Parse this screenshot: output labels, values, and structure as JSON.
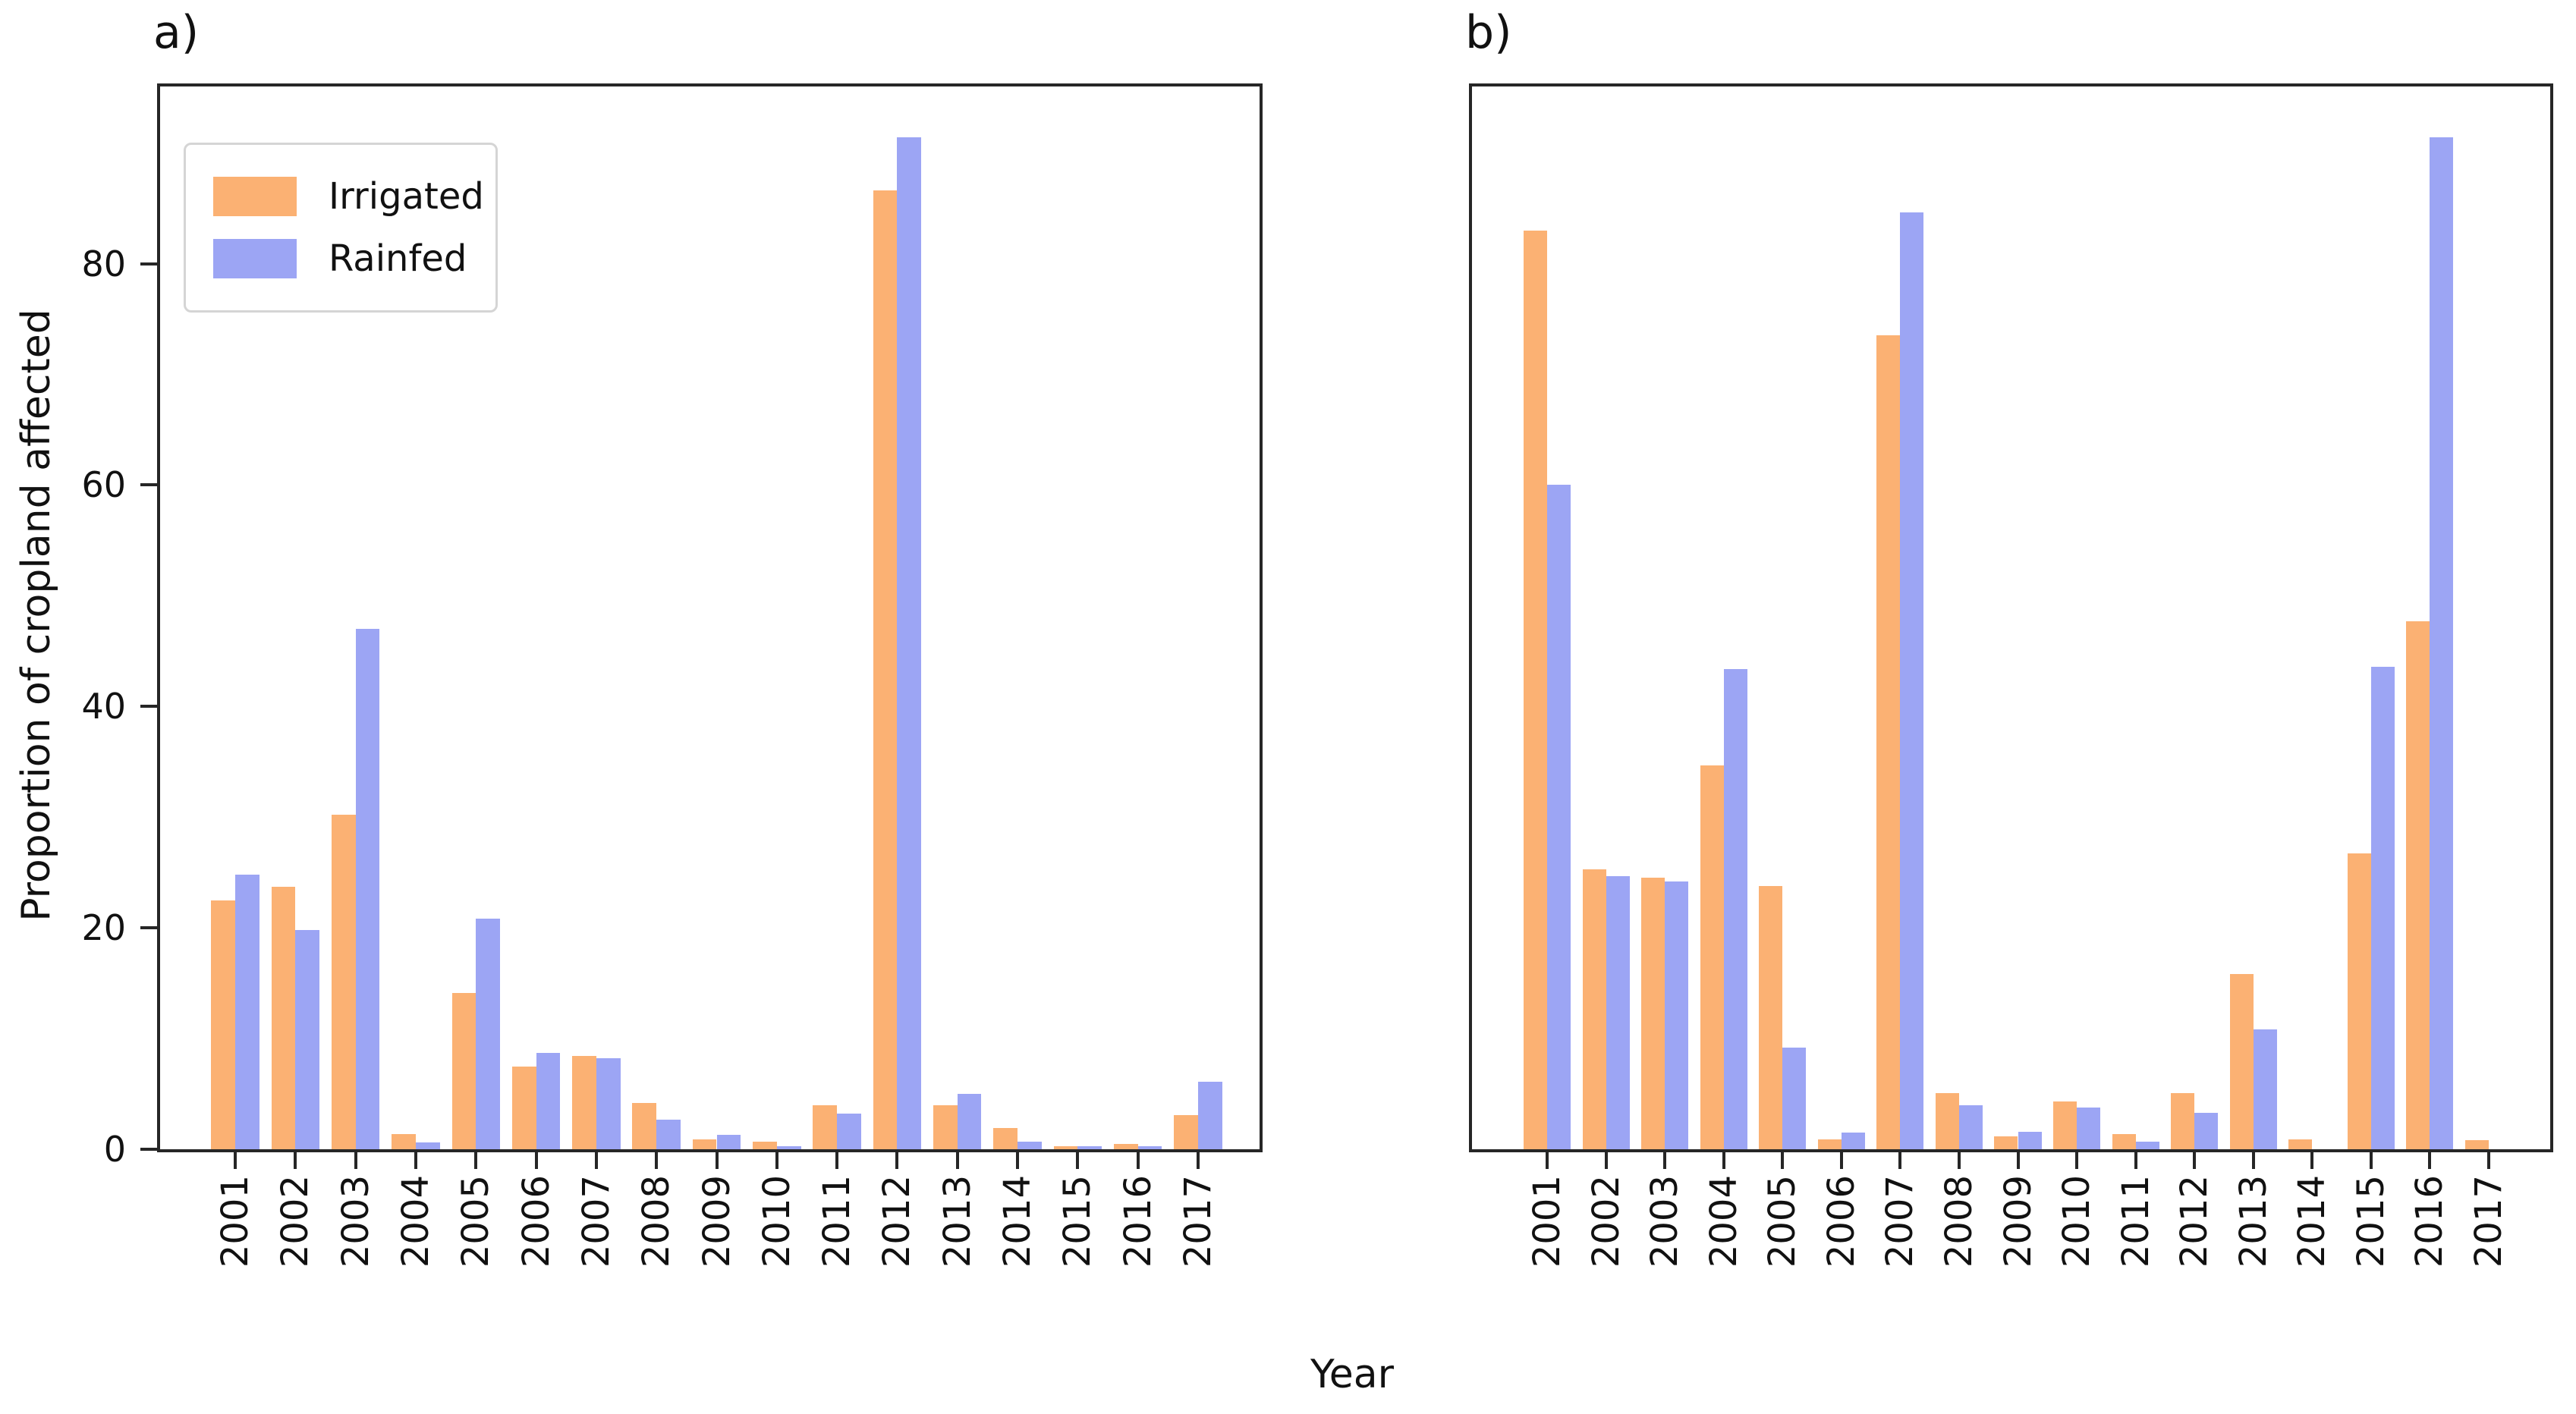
{
  "figure": {
    "xlabel": "Year",
    "ylabel": "Proportion of cropland affected",
    "background": "#ffffff",
    "spine_color": "#262626",
    "colors": {
      "irrigated": "#FBB173",
      "rainfed": "#9CA5F4"
    },
    "legend": {
      "position": "upper left",
      "items": [
        {
          "label": "Irrigated",
          "color": "#FBB173"
        },
        {
          "label": "Rainfed",
          "color": "#9CA5F4"
        }
      ]
    }
  },
  "chart_data": [
    {
      "type": "bar",
      "panel_label": "a)",
      "xlabel": "Year",
      "ylabel": "Proportion of cropland affected",
      "ylim": [
        0,
        96
      ],
      "yticks": [
        "0",
        "20",
        "40",
        "60",
        "80"
      ],
      "grid": false,
      "legend_position": "upper left",
      "categories": [
        "2001",
        "2002",
        "2003",
        "2004",
        "2005",
        "2006",
        "2007",
        "2008",
        "2009",
        "2010",
        "2011",
        "2012",
        "2013",
        "2014",
        "2015",
        "2016",
        "2017"
      ],
      "series": [
        {
          "name": "Irrigated",
          "values": [
            22.5,
            23.7,
            30.2,
            1.4,
            14.1,
            7.5,
            8.4,
            4.2,
            0.9,
            0.7,
            4.0,
            86.6,
            4.0,
            1.9,
            0.3,
            0.5,
            3.1
          ]
        },
        {
          "name": "Rainfed",
          "values": [
            24.8,
            19.8,
            47.0,
            0.6,
            20.8,
            8.7,
            8.2,
            2.7,
            1.3,
            0.3,
            3.2,
            91.4,
            5.0,
            0.7,
            0.3,
            0.3,
            6.1
          ]
        }
      ]
    },
    {
      "type": "bar",
      "panel_label": "b)",
      "xlabel": "Year",
      "ylabel": "",
      "ylim": [
        0,
        96
      ],
      "yticks": [],
      "grid": false,
      "legend_position": "none",
      "categories": [
        "2001",
        "2002",
        "2003",
        "2004",
        "2005",
        "2006",
        "2007",
        "2008",
        "2009",
        "2010",
        "2011",
        "2012",
        "2013",
        "2014",
        "2015",
        "2016",
        "2017"
      ],
      "series": [
        {
          "name": "Irrigated",
          "values": [
            83.0,
            25.3,
            24.5,
            34.7,
            23.8,
            0.9,
            73.5,
            5.1,
            1.2,
            4.3,
            1.4,
            5.1,
            15.8,
            0.9,
            26.7,
            47.7,
            0.8
          ]
        },
        {
          "name": "Rainfed",
          "values": [
            60.0,
            24.7,
            24.2,
            43.4,
            9.2,
            1.5,
            84.6,
            4.0,
            1.6,
            3.8,
            0.7,
            3.3,
            10.8,
            0.0,
            43.6,
            91.4,
            0.0
          ]
        }
      ]
    }
  ]
}
